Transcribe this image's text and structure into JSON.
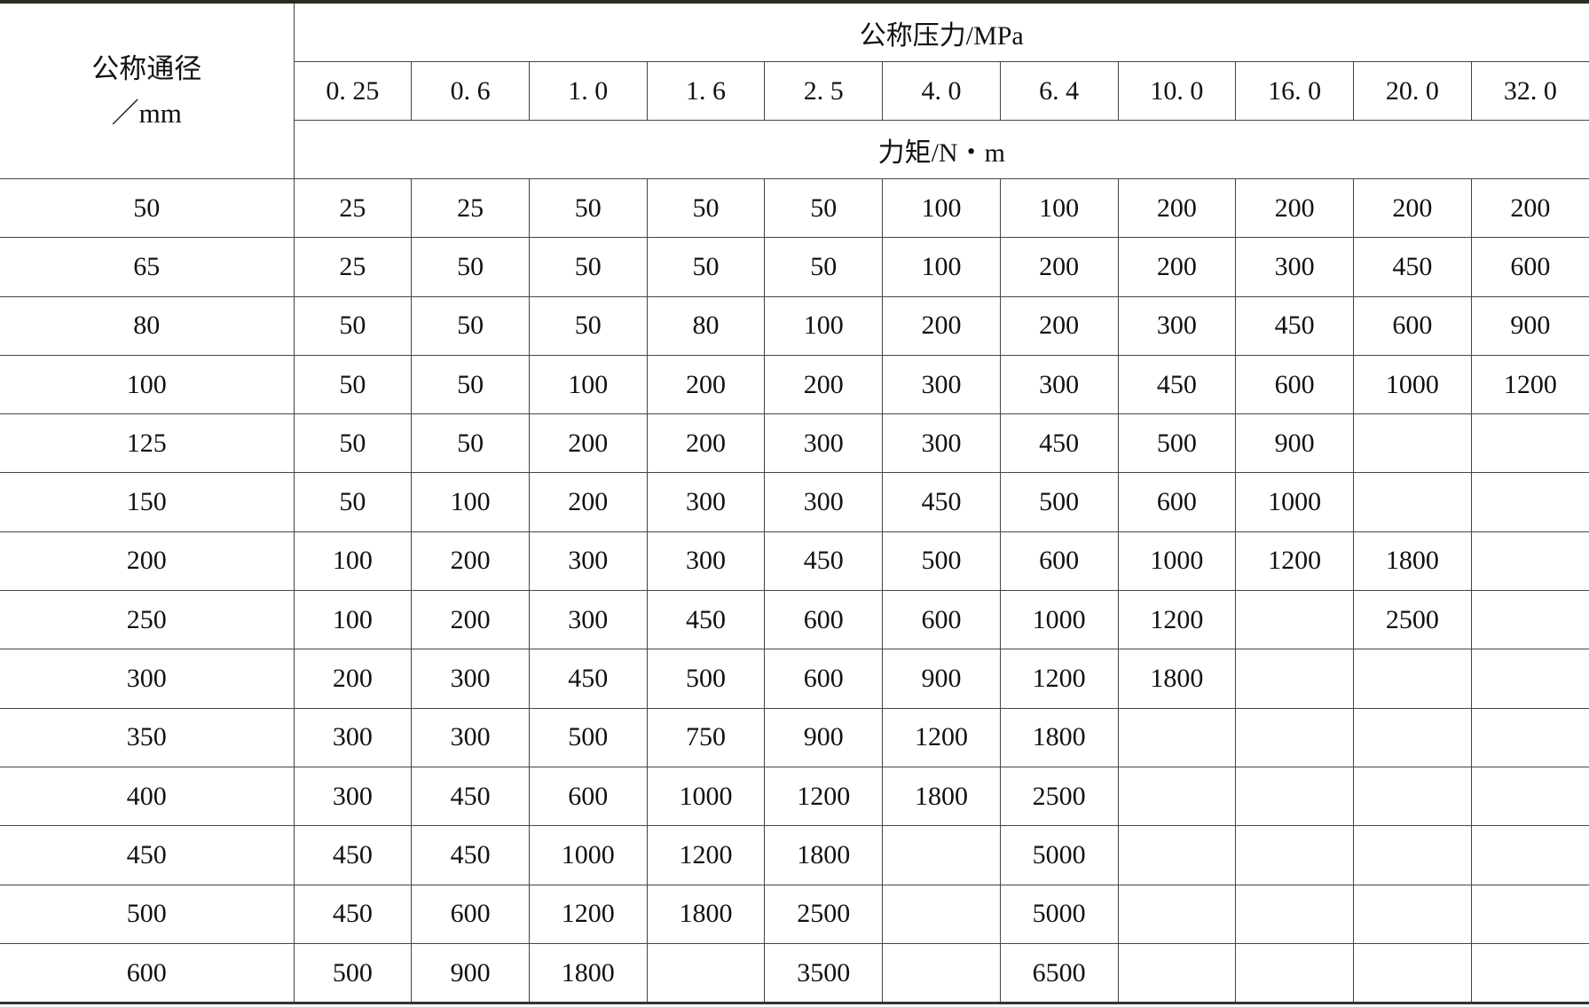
{
  "header": {
    "diameter_label": "公称通径",
    "diameter_unit": "／mm",
    "pressure_label": "公称压力/MPa",
    "torque_label": "力矩/N・m",
    "pressures": [
      "0. 25",
      "0. 6",
      "1. 0",
      "1. 6",
      "2. 5",
      "4. 0",
      "6. 4",
      "10. 0",
      "16. 0",
      "20. 0",
      "32. 0"
    ]
  },
  "rows": [
    {
      "dn": "50",
      "values": [
        "25",
        "25",
        "50",
        "50",
        "50",
        "100",
        "100",
        "200",
        "200",
        "200",
        "200"
      ]
    },
    {
      "dn": "65",
      "values": [
        "25",
        "50",
        "50",
        "50",
        "50",
        "100",
        "200",
        "200",
        "300",
        "450",
        "600"
      ]
    },
    {
      "dn": "80",
      "values": [
        "50",
        "50",
        "50",
        "80",
        "100",
        "200",
        "200",
        "300",
        "450",
        "600",
        "900"
      ]
    },
    {
      "dn": "100",
      "values": [
        "50",
        "50",
        "100",
        "200",
        "200",
        "300",
        "300",
        "450",
        "600",
        "1000",
        "1200"
      ]
    },
    {
      "dn": "125",
      "values": [
        "50",
        "50",
        "200",
        "200",
        "300",
        "300",
        "450",
        "500",
        "900",
        "",
        ""
      ]
    },
    {
      "dn": "150",
      "values": [
        "50",
        "100",
        "200",
        "300",
        "300",
        "450",
        "500",
        "600",
        "1000",
        "",
        ""
      ]
    },
    {
      "dn": "200",
      "values": [
        "100",
        "200",
        "300",
        "300",
        "450",
        "500",
        "600",
        "1000",
        "1200",
        "1800",
        ""
      ]
    },
    {
      "dn": "250",
      "values": [
        "100",
        "200",
        "300",
        "450",
        "600",
        "600",
        "1000",
        "1200",
        "",
        "2500",
        ""
      ]
    },
    {
      "dn": "300",
      "values": [
        "200",
        "300",
        "450",
        "500",
        "600",
        "900",
        "1200",
        "1800",
        "",
        "",
        ""
      ]
    },
    {
      "dn": "350",
      "values": [
        "300",
        "300",
        "500",
        "750",
        "900",
        "1200",
        "1800",
        "",
        "",
        "",
        ""
      ]
    },
    {
      "dn": "400",
      "values": [
        "300",
        "450",
        "600",
        "1000",
        "1200",
        "1800",
        "2500",
        "",
        "",
        "",
        ""
      ]
    },
    {
      "dn": "450",
      "values": [
        "450",
        "450",
        "1000",
        "1200",
        "1800",
        "",
        "5000",
        "",
        "",
        "",
        ""
      ]
    },
    {
      "dn": "500",
      "values": [
        "450",
        "600",
        "1200",
        "1800",
        "2500",
        "",
        "5000",
        "",
        "",
        "",
        ""
      ]
    },
    {
      "dn": "600",
      "values": [
        "500",
        "900",
        "1800",
        "",
        "3500",
        "",
        "6500",
        "",
        "",
        "",
        ""
      ]
    }
  ]
}
